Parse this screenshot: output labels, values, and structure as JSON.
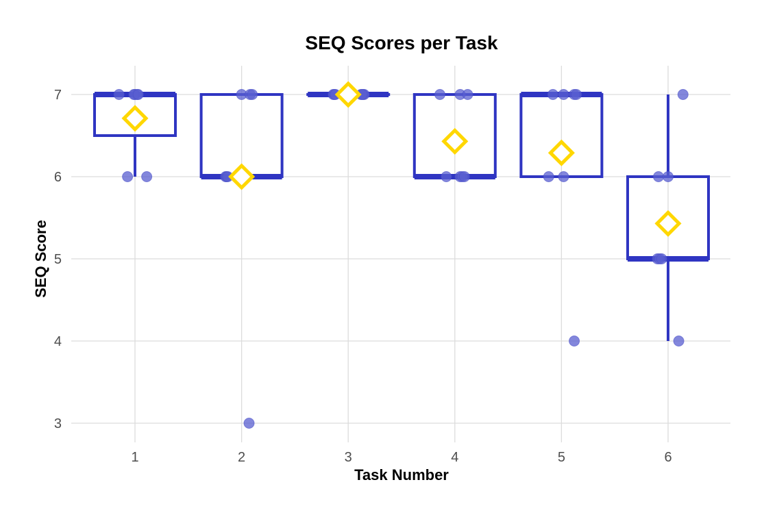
{
  "chart_data": {
    "type": "box",
    "title": "SEQ Scores per Task",
    "xlabel": "Task Number",
    "ylabel": "SEQ Score",
    "categories": [
      "1",
      "2",
      "3",
      "4",
      "5",
      "6"
    ],
    "y_ticks": [
      3,
      4,
      5,
      6,
      7
    ],
    "ylim": [
      2.8,
      7.4
    ],
    "grid": true,
    "legend": null,
    "colors": {
      "box": "#2f35c2",
      "points": "#5a5fd0",
      "mean_marker": "#ffd700",
      "grid": "#dcdcdc"
    },
    "boxes": [
      {
        "task": "1",
        "min": 6,
        "q1": 6.5,
        "median": 7,
        "q3": 7,
        "max": 7,
        "mean": 6.71,
        "outliers": []
      },
      {
        "task": "2",
        "min": 6,
        "q1": 6,
        "median": 6,
        "q3": 7,
        "max": 7,
        "mean": 6.0,
        "outliers": [
          3
        ]
      },
      {
        "task": "3",
        "min": 7,
        "q1": 7,
        "median": 7,
        "q3": 7,
        "max": 7,
        "mean": 7.0,
        "outliers": []
      },
      {
        "task": "4",
        "min": 6,
        "q1": 6,
        "median": 6,
        "q3": 7,
        "max": 7,
        "mean": 6.43,
        "outliers": []
      },
      {
        "task": "5",
        "min": 6,
        "q1": 6,
        "median": 7,
        "q3": 7,
        "max": 7,
        "mean": 6.29,
        "outliers": [
          4
        ]
      },
      {
        "task": "6",
        "min": 4,
        "q1": 5,
        "median": 5,
        "q3": 6,
        "max": 7,
        "mean": 5.43,
        "outliers": []
      }
    ],
    "points": [
      {
        "task": "1",
        "values": [
          7,
          7,
          7,
          7,
          7,
          6,
          6
        ],
        "jitter": [
          -0.15,
          0.0,
          0.02,
          -0.01,
          0.03,
          -0.07,
          0.11
        ]
      },
      {
        "task": "2",
        "values": [
          7,
          7,
          7,
          6,
          6,
          6,
          3
        ],
        "jitter": [
          0.0,
          0.08,
          0.1,
          -0.15,
          -0.14,
          -0.13,
          0.07
        ]
      },
      {
        "task": "3",
        "values": [
          7,
          7,
          7,
          7,
          7,
          7,
          7
        ],
        "jitter": [
          -0.14,
          -0.13,
          -0.12,
          0.12,
          0.14,
          0.15,
          0.13
        ]
      },
      {
        "task": "4",
        "values": [
          7,
          7,
          7,
          6,
          6,
          6,
          6
        ],
        "jitter": [
          -0.14,
          0.05,
          0.12,
          -0.08,
          0.05,
          0.07,
          0.09
        ]
      },
      {
        "task": "5",
        "values": [
          7,
          7,
          7,
          7,
          6,
          6,
          4
        ],
        "jitter": [
          -0.08,
          0.02,
          0.12,
          0.14,
          -0.12,
          0.02,
          0.12
        ]
      },
      {
        "task": "6",
        "values": [
          7,
          6,
          6,
          5,
          5,
          5,
          4
        ],
        "jitter": [
          0.14,
          -0.09,
          0.0,
          -0.1,
          -0.08,
          -0.06,
          0.1
        ]
      }
    ]
  }
}
